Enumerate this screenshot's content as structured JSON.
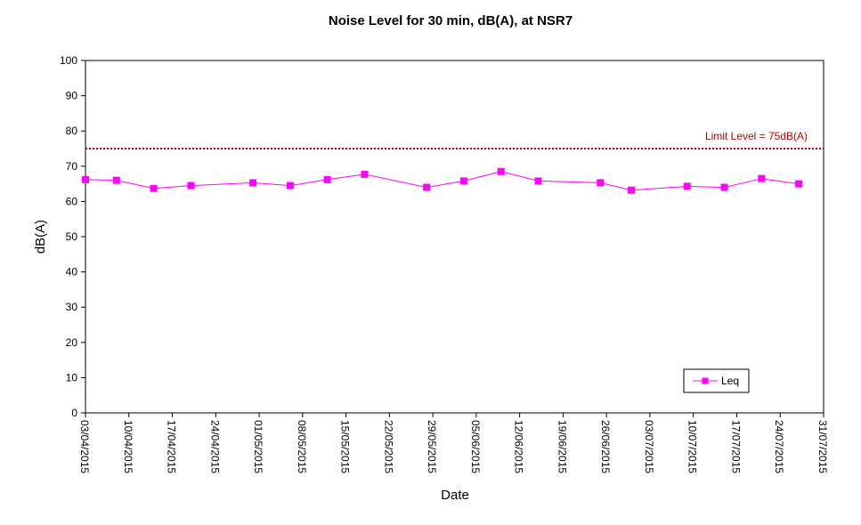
{
  "chart_data": {
    "type": "line",
    "title": "Noise Level for 30 min, dB(A), at NSR7",
    "xlabel": "Date",
    "ylabel": "dB(A)",
    "ylim": [
      0,
      100
    ],
    "yticks": [
      0,
      10,
      20,
      30,
      40,
      50,
      60,
      70,
      80,
      90,
      100
    ],
    "xlim": [
      "03/04/2015",
      "31/07/2015"
    ],
    "xticks": [
      "03/04/2015",
      "10/04/2015",
      "17/04/2015",
      "24/04/2015",
      "01/05/2015",
      "08/05/2015",
      "15/05/2015",
      "22/05/2015",
      "29/05/2015",
      "05/06/2015",
      "12/06/2015",
      "19/06/2015",
      "26/06/2015",
      "03/07/2015",
      "10/07/2015",
      "17/07/2015",
      "24/07/2015",
      "31/07/2015"
    ],
    "grid": false,
    "legend_position": "bottom-right",
    "series": [
      {
        "name": "Leq",
        "color": "#ff00ff",
        "marker": "square",
        "x": [
          "03/04/2015",
          "08/04/2015",
          "14/04/2015",
          "20/04/2015",
          "30/04/2015",
          "06/05/2015",
          "12/05/2015",
          "18/05/2015",
          "28/05/2015",
          "03/06/2015",
          "09/06/2015",
          "15/06/2015",
          "25/06/2015",
          "30/06/2015",
          "09/07/2015",
          "15/07/2015",
          "21/07/2015",
          "27/07/2015"
        ],
        "values": [
          66.2,
          66.0,
          63.7,
          64.5,
          65.3,
          64.5,
          66.2,
          67.7,
          64.0,
          65.8,
          68.5,
          65.8,
          65.3,
          63.2,
          64.3,
          64.0,
          66.5,
          65.0
        ]
      }
    ],
    "reference_lines": [
      {
        "label": "Limit Level  = 75dB(A)",
        "y": 75,
        "color": "#c00000",
        "style": "dotted"
      }
    ]
  }
}
